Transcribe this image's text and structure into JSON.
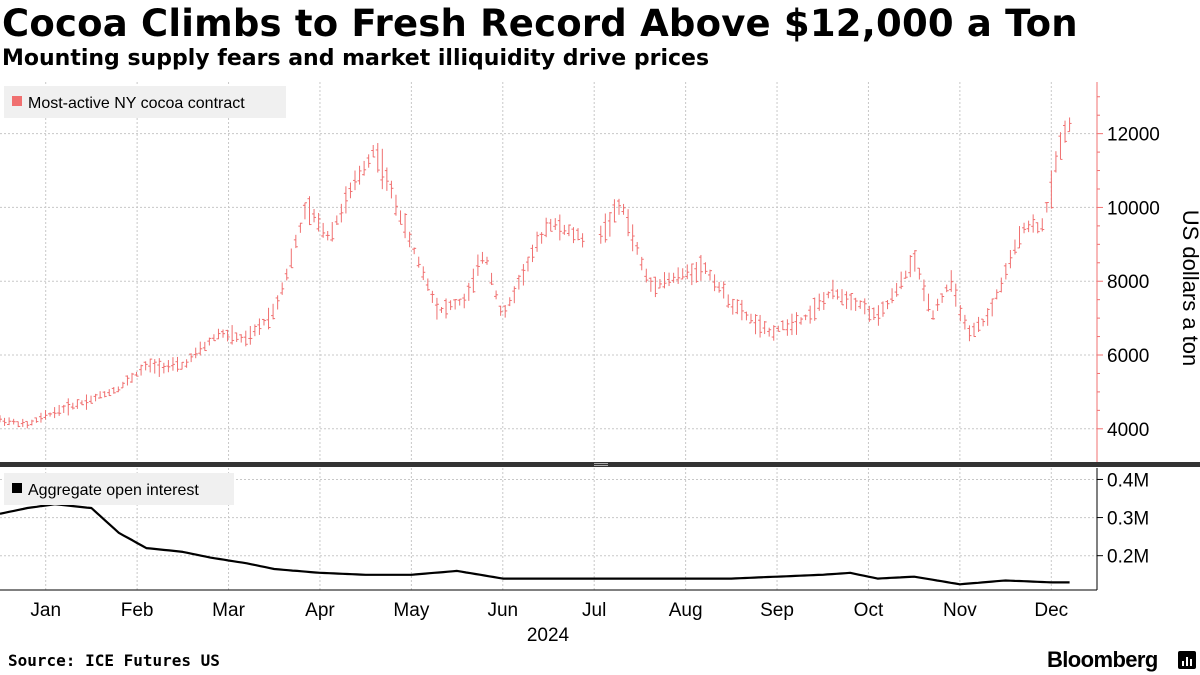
{
  "title": "Cocoa Climbs to Fresh Record Above $12,000 a Ton",
  "subtitle": "Mounting supply fears and market illiquidity drive prices",
  "source": "Source: ICE Futures US",
  "brand": "Bloomberg",
  "colors": {
    "price": "#f07070",
    "oi": "#000000",
    "grid": "#c8c8c8",
    "divider": "#333333",
    "legend_bg": "#f0f0f0"
  },
  "chart_data": [
    {
      "type": "line",
      "style": "ohlc-bars",
      "legend": "Most-active NY cocoa contract",
      "legend_position": "top-left",
      "ylabel": "US dollars a ton",
      "y_axis_side": "right",
      "ylim": [
        3100,
        13400
      ],
      "yticks": [
        4000,
        6000,
        8000,
        10000,
        12000
      ],
      "ytick_labels": [
        "4000",
        "6000",
        "8000",
        "10000",
        "12000"
      ],
      "grid": true,
      "x": [
        0,
        0.3,
        0.5,
        0.7,
        1,
        1.3,
        1.6,
        2.0,
        2.4,
        2.7,
        3.0,
        3.15,
        3.35,
        3.6,
        3.85,
        4.1,
        4.5,
        4.8,
        5.1,
        5.3,
        5.5,
        5.7,
        6.0,
        6.5,
        6.8,
        7.1,
        7.4,
        7.7,
        8.0,
        8.4,
        8.8,
        9.1,
        9.4,
        9.6,
        9.8,
        10.0,
        10.2,
        10.4,
        10.6,
        10.8,
        11.0,
        11.2,
        11.4,
        11.5,
        11.6,
        11.7
      ],
      "values": [
        4250,
        4100,
        4350,
        4550,
        4800,
        5100,
        5700,
        5700,
        6600,
        6400,
        7200,
        8300,
        10000,
        9200,
        10500,
        11600,
        9000,
        7200,
        7500,
        8800,
        7000,
        8100,
        9600,
        9000,
        10100,
        7900,
        8100,
        8400,
        7400,
        6600,
        7000,
        7700,
        7400,
        7000,
        7700,
        8600,
        7100,
        8000,
        6500,
        7000,
        8200,
        9500,
        9500,
        10500,
        11800,
        12300
      ],
      "x_domain": [
        0,
        12
      ]
    },
    {
      "type": "line",
      "legend": "Aggregate open interest",
      "legend_position": "top-left",
      "y_axis_side": "right",
      "ylim": [
        0.11,
        0.43
      ],
      "yticks": [
        0.2,
        0.3,
        0.4
      ],
      "ytick_labels": [
        "0.2M",
        "0.3M",
        "0.4M"
      ],
      "grid": true,
      "x": [
        0,
        0.3,
        0.6,
        1.0,
        1.3,
        1.6,
        2.0,
        2.3,
        2.7,
        3.0,
        3.5,
        4.0,
        4.5,
        5.0,
        5.5,
        6.0,
        6.5,
        7.0,
        7.5,
        8.0,
        8.5,
        9.0,
        9.3,
        9.6,
        10.0,
        10.5,
        11.0,
        11.5,
        11.7
      ],
      "values": [
        0.31,
        0.325,
        0.335,
        0.325,
        0.26,
        0.22,
        0.21,
        0.195,
        0.18,
        0.165,
        0.155,
        0.15,
        0.15,
        0.16,
        0.14,
        0.14,
        0.14,
        0.14,
        0.14,
        0.14,
        0.145,
        0.15,
        0.155,
        0.14,
        0.145,
        0.125,
        0.135,
        0.13,
        0.13
      ],
      "x_domain": [
        0,
        12
      ]
    }
  ],
  "x_axis": {
    "months": [
      "Jan",
      "Feb",
      "Mar",
      "Apr",
      "May",
      "Jun",
      "Jul",
      "Aug",
      "Sep",
      "Oct",
      "Nov",
      "Dec"
    ],
    "year": "2024"
  }
}
